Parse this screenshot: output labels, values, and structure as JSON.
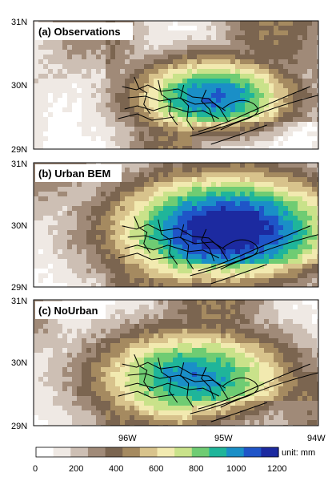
{
  "figure": {
    "panels": [
      {
        "id": "a",
        "title": "(a) Observations",
        "peak": 1050,
        "spread": 1.0,
        "cx_lon": -95.1,
        "cy_lat": 29.85,
        "lat_ticks": [
          "31N",
          "30N",
          "29N"
        ]
      },
      {
        "id": "b",
        "title": "(b) Urban BEM",
        "peak": 1250,
        "spread": 1.4,
        "cx_lon": -94.95,
        "cy_lat": 29.95,
        "lat_ticks": [
          "31N",
          "30N",
          "29N"
        ]
      },
      {
        "id": "c",
        "title": "(c) NoUrban",
        "peak": 1000,
        "spread": 1.25,
        "cx_lon": -95.3,
        "cy_lat": 29.8,
        "lat_ticks": [
          "31N",
          "30N",
          "29N"
        ]
      }
    ],
    "lon_ticks": [
      "96W",
      "95W",
      "94W"
    ],
    "colorbar": {
      "ticks": [
        "0",
        "200",
        "400",
        "600",
        "800",
        "1000",
        "1200"
      ],
      "unit": "unit: mm",
      "min": 0,
      "max": 1200
    },
    "colors": {
      "ramp": [
        "#ffffff",
        "#efe9e4",
        "#cdbfb4",
        "#a08a78",
        "#7b6550",
        "#a58a60",
        "#d8c38c",
        "#f2eab0",
        "#c9e28a",
        "#6fcc73",
        "#1fb59a",
        "#1a8fc7",
        "#1f55c8",
        "#1c2aa0"
      ]
    }
  },
  "map": {
    "lon_min": -96.9,
    "lon_max": -94.0,
    "lat_min": 29.0,
    "lat_max": 31.0
  }
}
